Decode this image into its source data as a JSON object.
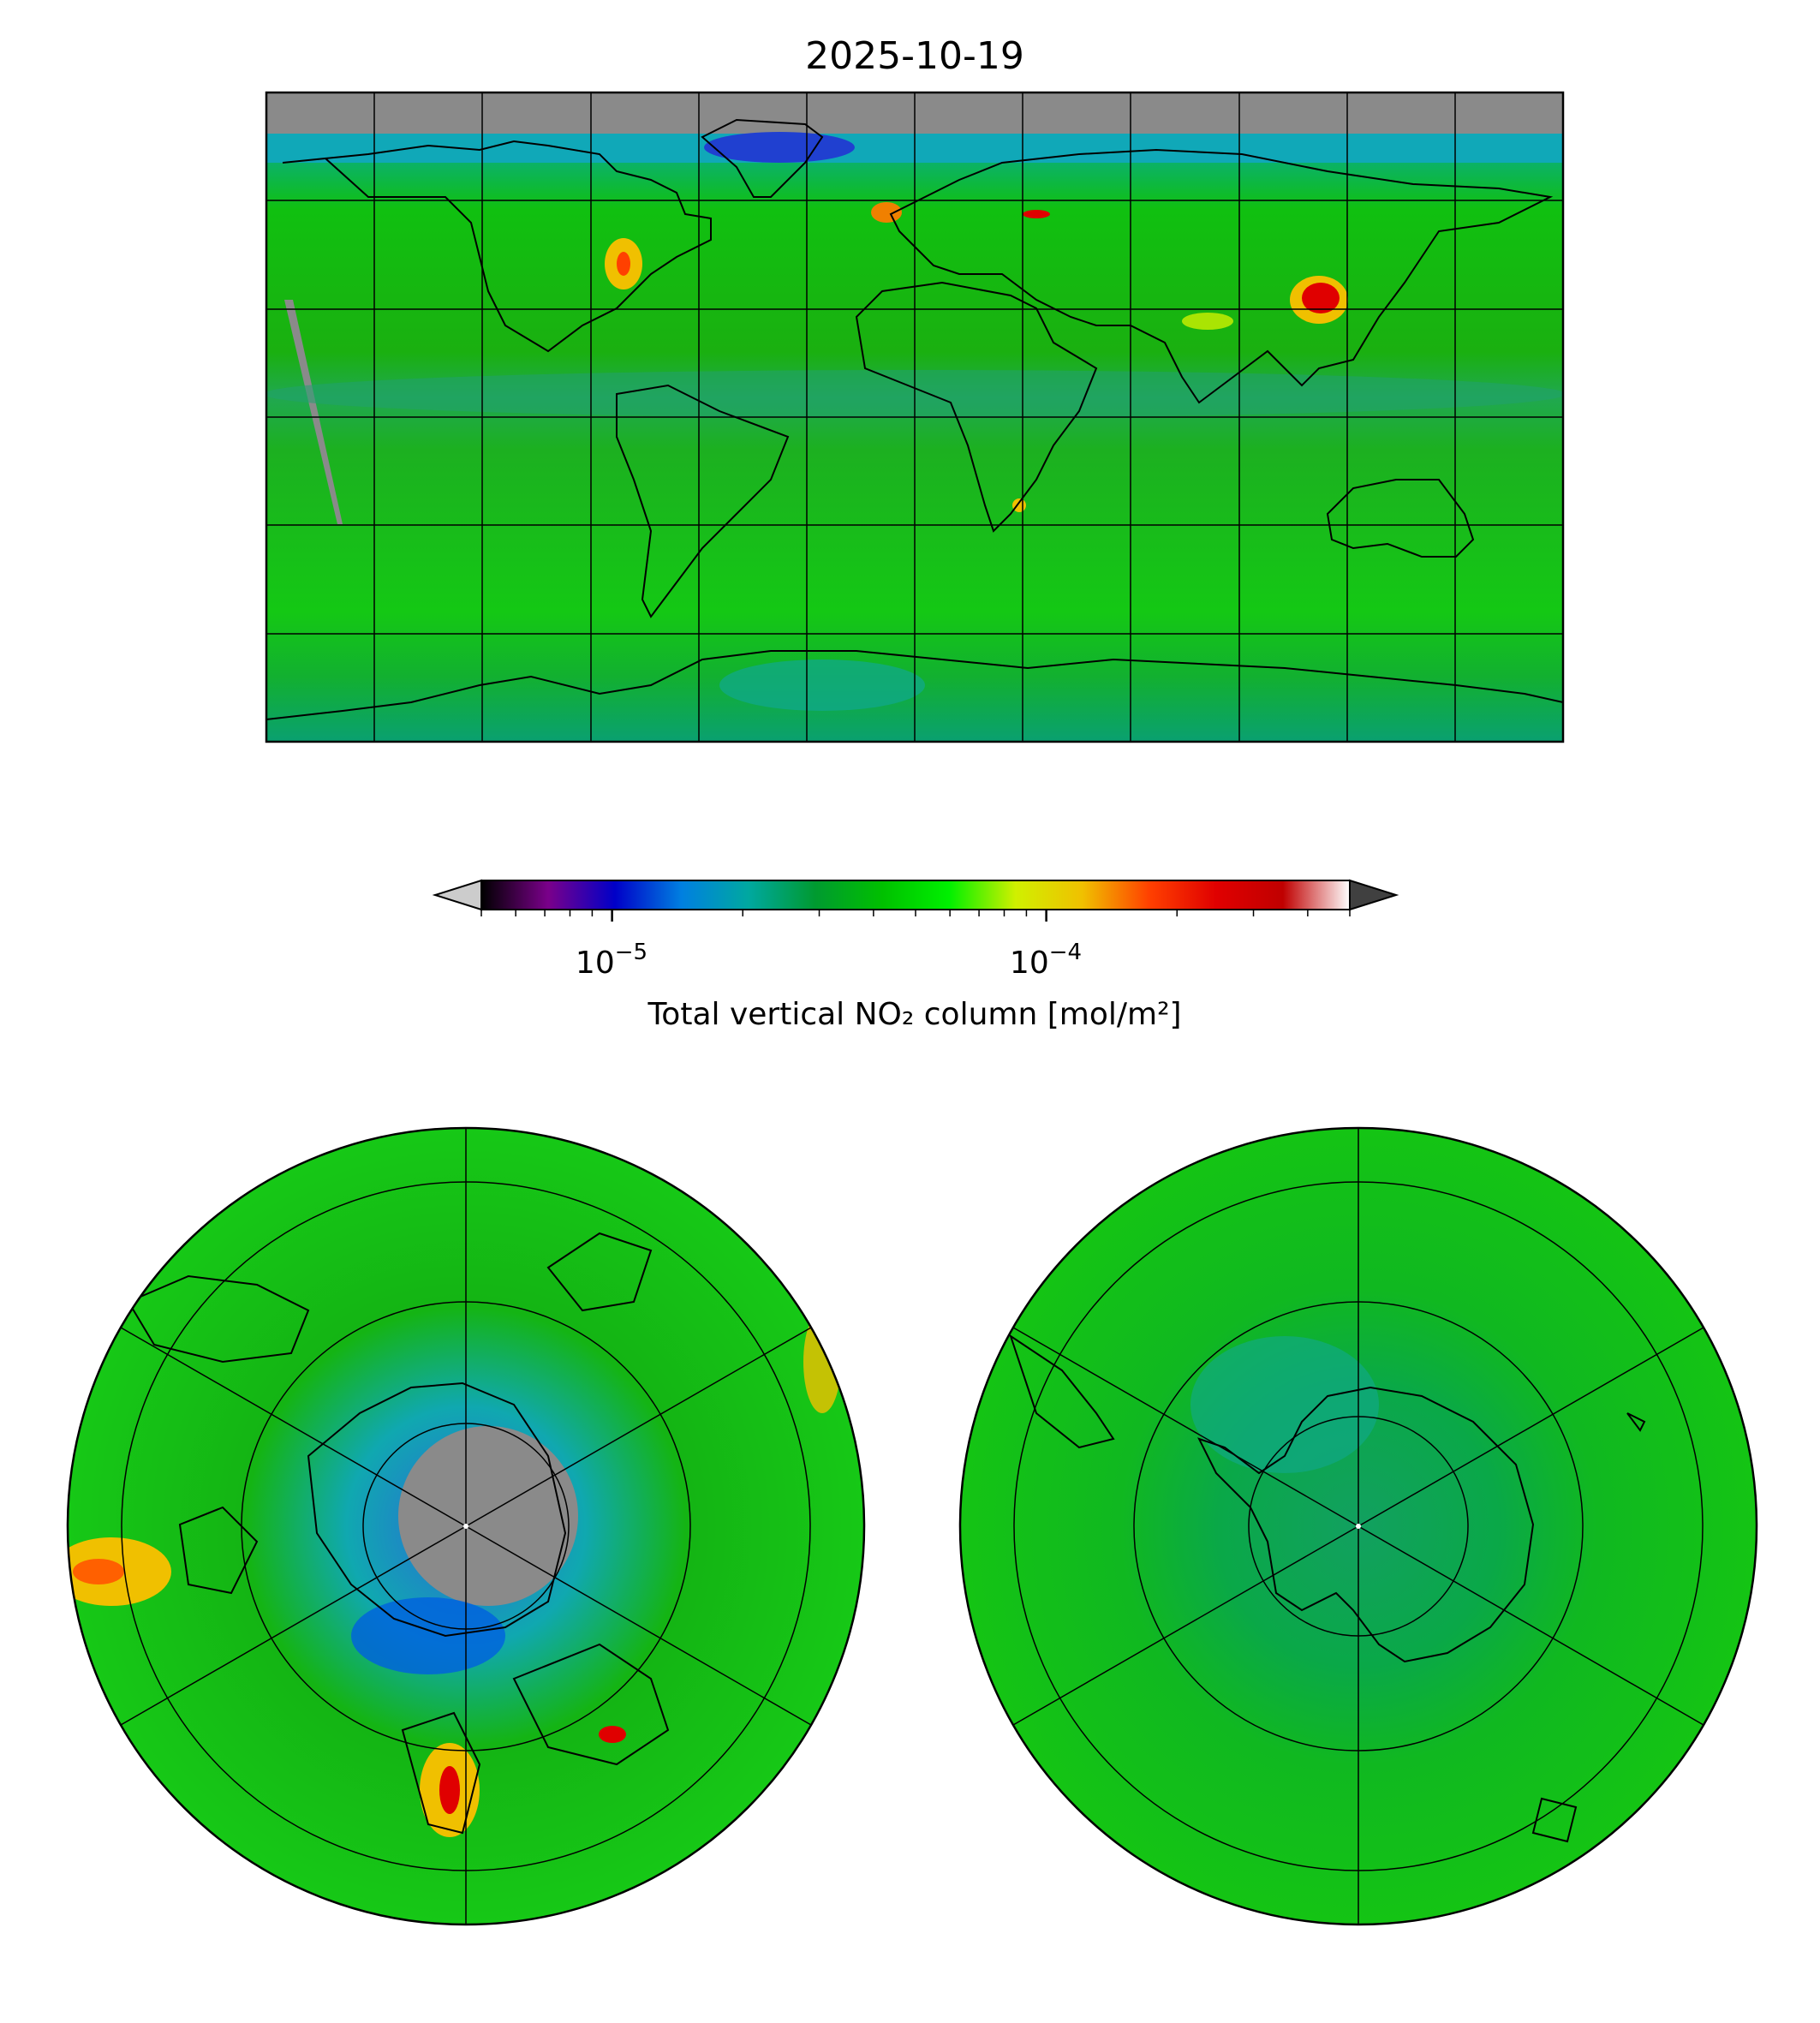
{
  "figure": {
    "title": "2025-10-19"
  },
  "colorbar": {
    "label": "Total vertical NO₂ column [mol/m²]",
    "scale": "log",
    "range": [
      5e-06,
      0.0005
    ],
    "ticks": [
      {
        "value": 1e-05,
        "label_base": "10",
        "label_exp": "−5"
      },
      {
        "value": 0.0001,
        "label_base": "10",
        "label_exp": "−4"
      }
    ],
    "extend": "both",
    "colors": [
      "#000000",
      "#7a008a",
      "#0000c8",
      "#0080e0",
      "#00a8a0",
      "#009a30",
      "#00c000",
      "#00f000",
      "#d0f000",
      "#f0c000",
      "#ff4000",
      "#e00000",
      "#c00000",
      "#ffffff"
    ],
    "under_color": "#cccccc",
    "over_color": "#404040"
  },
  "panels": {
    "global_map": {
      "projection": "plate-carree",
      "nodata_color": "#8a8a8a",
      "background_color": "#00c400"
    },
    "north_polar_map": {
      "projection": "north-polar-stereographic",
      "nodata_color": "#8a8a8a"
    },
    "south_polar_map": {
      "projection": "south-polar-stereographic"
    }
  }
}
